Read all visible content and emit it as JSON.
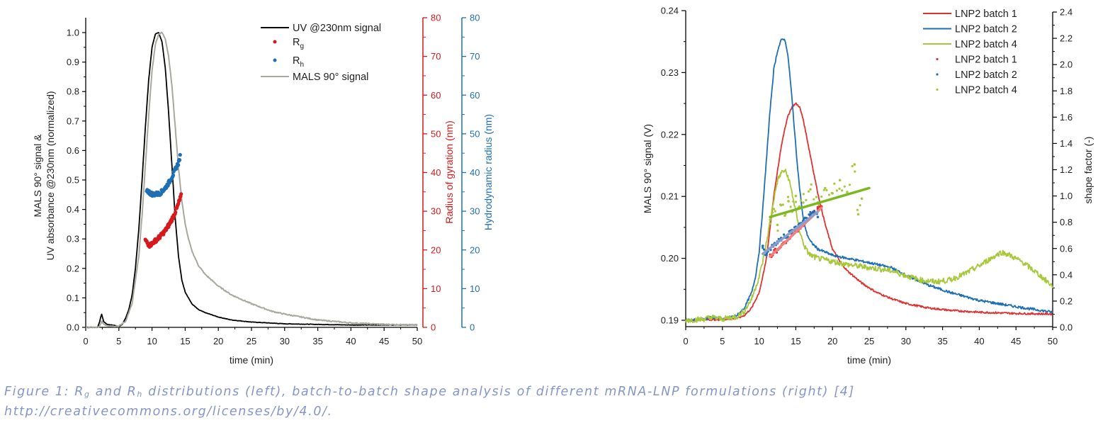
{
  "chart_data": [
    {
      "type": "line",
      "id": "left",
      "title": "",
      "xlabel": "time (min)",
      "ylabel_line1": "MALS 90° signal &",
      "ylabel_line2": "UV absorbance @230nm (normalized)",
      "xlim": [
        0,
        50
      ],
      "ylim": [
        0,
        1.05
      ],
      "xticks": [
        0,
        5,
        10,
        15,
        20,
        25,
        30,
        35,
        40,
        45,
        50
      ],
      "yticks": [
        0.0,
        0.1,
        0.2,
        0.3,
        0.4,
        0.5,
        0.6,
        0.7,
        0.8,
        0.9,
        1.0
      ],
      "ytick_labels": [
        "0.0",
        "0.1",
        "0.2",
        "0.3",
        "0.4",
        "0.5",
        "0.6",
        "0.7",
        "0.8",
        "0.9",
        "1.0"
      ],
      "grid": false,
      "legend": "top-right",
      "secondary_axes": [
        {
          "label": "Radius of gyration (nm)",
          "color": "#d7191c",
          "ylim": [
            0,
            80
          ],
          "ticks": [
            0,
            10,
            20,
            30,
            40,
            50,
            60,
            70,
            80
          ]
        },
        {
          "label": "Hydrodynamic radius (nm)",
          "color": "#1f6fb4",
          "ylim": [
            0,
            80
          ],
          "ticks": [
            0,
            10,
            20,
            30,
            40,
            50,
            60,
            70,
            80
          ]
        }
      ],
      "series": [
        {
          "name": "UV @230nm signal",
          "kind": "line",
          "color": "#000000",
          "axis": "primary",
          "x": [
            0,
            1.8,
            2.1,
            2.4,
            2.7,
            3.2,
            4,
            5,
            5.5,
            6,
            6.5,
            7,
            7.5,
            8,
            8.5,
            9,
            9.5,
            10,
            10.5,
            11,
            11.5,
            12,
            12.5,
            13,
            13.5,
            14,
            14.5,
            15,
            16,
            17,
            18,
            20,
            22,
            25,
            30,
            35,
            40,
            50
          ],
          "y": [
            0.0,
            0.0,
            0.02,
            0.045,
            0.02,
            0.01,
            0.008,
            0.003,
            0.01,
            0.03,
            0.06,
            0.11,
            0.2,
            0.33,
            0.5,
            0.68,
            0.84,
            0.95,
            0.995,
            1.0,
            0.97,
            0.88,
            0.73,
            0.55,
            0.37,
            0.24,
            0.16,
            0.12,
            0.08,
            0.06,
            0.05,
            0.035,
            0.025,
            0.018,
            0.012,
            0.01,
            0.008,
            0.008
          ]
        },
        {
          "name": "MALS 90° signal",
          "kind": "line",
          "color": "#a8a8a0",
          "axis": "primary",
          "x": [
            0,
            2,
            2.4,
            2.8,
            3.5,
            5,
            6,
            7,
            8,
            8.5,
            9,
            9.5,
            10,
            10.5,
            11,
            11.5,
            12,
            12.5,
            13,
            13.5,
            14,
            14.5,
            15,
            15.5,
            16,
            17,
            18,
            20,
            22,
            25,
            28,
            30,
            35,
            40,
            45,
            50
          ],
          "y": [
            0.0,
            0.0,
            0.02,
            0.01,
            0.005,
            0.004,
            0.02,
            0.08,
            0.24,
            0.38,
            0.55,
            0.72,
            0.87,
            0.96,
            0.995,
            1.0,
            0.98,
            0.92,
            0.82,
            0.68,
            0.54,
            0.43,
            0.35,
            0.3,
            0.26,
            0.21,
            0.18,
            0.14,
            0.11,
            0.08,
            0.055,
            0.045,
            0.025,
            0.015,
            0.01,
            0.008
          ]
        },
        {
          "name": "R_g",
          "legend_label": "R",
          "legend_sub": "g",
          "kind": "scatter",
          "color": "#d7191c",
          "axis": "secondary0",
          "x": [
            9.0,
            9.3,
            9.6,
            9.9,
            10.2,
            10.5,
            10.8,
            11.1,
            11.4,
            11.7,
            12.0,
            12.3,
            12.6,
            12.9,
            13.2,
            13.5,
            13.8,
            14.1,
            14.4
          ],
          "y": [
            22.5,
            21.8,
            21.2,
            21.5,
            22.0,
            22.4,
            22.8,
            23.3,
            23.8,
            24.4,
            25.0,
            25.8,
            26.6,
            27.6,
            28.6,
            29.8,
            31.0,
            32.6,
            34.0
          ]
        },
        {
          "name": "R_h",
          "legend_label": "R",
          "legend_sub": "h",
          "kind": "scatter",
          "color": "#1f6fb4",
          "axis": "secondary1",
          "x": [
            9.2,
            9.5,
            9.8,
            10.1,
            10.4,
            10.7,
            11.0,
            11.3,
            11.6,
            11.9,
            12.2,
            12.5,
            12.8,
            13.1,
            13.4,
            13.7,
            14.0,
            14.3
          ],
          "y": [
            35.5,
            35.0,
            34.6,
            34.4,
            34.4,
            34.5,
            34.5,
            34.8,
            35.3,
            35.8,
            36.5,
            37.3,
            38.2,
            39.2,
            40.3,
            41.5,
            42.5,
            44.5
          ]
        }
      ],
      "legend_entries": [
        "UV @230nm signal",
        "R",
        "R",
        "MALS 90° signal"
      ]
    },
    {
      "type": "line",
      "id": "right",
      "title": "",
      "xlabel": "time (min)",
      "ylabel": "MALS 90° signal (V)",
      "y2label": "shape factor (-)",
      "xlim": [
        0,
        50
      ],
      "ylim": [
        0.189,
        0.24
      ],
      "y2lim": [
        0,
        2.4
      ],
      "xticks": [
        0,
        5,
        10,
        15,
        20,
        25,
        30,
        35,
        40,
        45,
        50
      ],
      "yticks": [
        0.19,
        0.2,
        0.21,
        0.22,
        0.23,
        0.24
      ],
      "ytick_labels": [
        "0.19",
        "0.20",
        "0.21",
        "0.22",
        "0.23",
        "0.24"
      ],
      "y2ticks": [
        0.0,
        0.2,
        0.4,
        0.6,
        0.8,
        1.0,
        1.2,
        1.4,
        1.6,
        1.8,
        2.0,
        2.2,
        2.4
      ],
      "y2tick_labels": [
        "0.0",
        "0.2",
        "0.4",
        "0.6",
        "0.8",
        "1.0",
        "1.2",
        "1.4",
        "1.6",
        "1.8",
        "2.0",
        "2.2",
        "2.4"
      ],
      "grid": false,
      "legend": "top-right",
      "series": [
        {
          "name": "LNP2 batch 1",
          "kind": "line",
          "color": "#e03131",
          "axis": "primary",
          "x": [
            0,
            3,
            5,
            7,
            8,
            9,
            10,
            10.5,
            11,
            11.5,
            12,
            12.5,
            13,
            13.5,
            14,
            14.5,
            15,
            15.5,
            16,
            16.5,
            17,
            17.5,
            18,
            19,
            20,
            21,
            22,
            24,
            26,
            28,
            30,
            33,
            36,
            40,
            45,
            50
          ],
          "y": [
            0.19,
            0.1901,
            0.1901,
            0.1903,
            0.1908,
            0.192,
            0.1945,
            0.197,
            0.2,
            0.205,
            0.21,
            0.214,
            0.218,
            0.221,
            0.2232,
            0.2245,
            0.225,
            0.2245,
            0.2225,
            0.2195,
            0.2165,
            0.2135,
            0.2105,
            0.2055,
            0.2015,
            0.1995,
            0.198,
            0.196,
            0.1945,
            0.1935,
            0.1927,
            0.192,
            0.1916,
            0.1913,
            0.1911,
            0.191
          ]
        },
        {
          "name": "LNP2 batch 2",
          "kind": "line",
          "color": "#1f6fb4",
          "axis": "primary",
          "x": [
            0,
            2.5,
            3.5,
            5,
            7,
            8,
            9,
            9.5,
            10,
            10.5,
            11,
            11.5,
            12,
            12.5,
            13,
            13.3,
            13.6,
            14,
            14.5,
            15,
            15.5,
            16,
            16.5,
            17,
            18,
            19,
            20,
            22,
            25,
            28,
            30,
            33,
            36,
            40,
            45,
            50
          ],
          "y": [
            0.19,
            0.1902,
            0.1905,
            0.1902,
            0.1908,
            0.192,
            0.1945,
            0.197,
            0.201,
            0.208,
            0.216,
            0.224,
            0.2305,
            0.2335,
            0.2352,
            0.2355,
            0.235,
            0.232,
            0.2255,
            0.218,
            0.2115,
            0.2065,
            0.204,
            0.2027,
            0.2015,
            0.201,
            0.2005,
            0.2,
            0.1993,
            0.1985,
            0.1973,
            0.1957,
            0.1945,
            0.1932,
            0.1922,
            0.1913
          ]
        },
        {
          "name": "LNP2 batch 4",
          "kind": "line",
          "color": "#a8c83c",
          "axis": "primary",
          "x": [
            0,
            2.5,
            3.5,
            5,
            7,
            8,
            9,
            10,
            10.5,
            11,
            11.5,
            12,
            12.5,
            13,
            13.5,
            14,
            14.5,
            15,
            15.5,
            16,
            16.5,
            17,
            18,
            20,
            22,
            25,
            28,
            30,
            32,
            34,
            36,
            38,
            40,
            42,
            43,
            44,
            46,
            48,
            50
          ],
          "y": [
            0.19,
            0.1902,
            0.1905,
            0.1902,
            0.1906,
            0.1915,
            0.1935,
            0.197,
            0.1995,
            0.2025,
            0.206,
            0.2095,
            0.2125,
            0.2138,
            0.2142,
            0.213,
            0.2105,
            0.2075,
            0.2045,
            0.2025,
            0.2012,
            0.2005,
            0.2,
            0.1995,
            0.199,
            0.1985,
            0.198,
            0.1972,
            0.1965,
            0.1962,
            0.1965,
            0.1975,
            0.1988,
            0.2003,
            0.201,
            0.2006,
            0.1993,
            0.1975,
            0.1955
          ]
        },
        {
          "name": "LNP2 batch 1",
          "kind": "scatter",
          "color": "#e03131",
          "axis": "secondary",
          "x": [
            11.5,
            12,
            12.5,
            13,
            13.5,
            14,
            14.5,
            15,
            15.5,
            16,
            16.5,
            17,
            17.5,
            18,
            18.5
          ],
          "y": [
            0.54,
            0.57,
            0.59,
            0.62,
            0.65,
            0.67,
            0.71,
            0.73,
            0.76,
            0.79,
            0.81,
            0.84,
            0.87,
            0.9,
            0.92
          ],
          "fit": {
            "x": [
              11.5,
              18.5
            ],
            "y": [
              0.54,
              0.91
            ],
            "color": "#f08080"
          }
        },
        {
          "name": "LNP2 batch 2",
          "kind": "scatter",
          "color": "#1f6fb4",
          "axis": "secondary",
          "x": [
            10.5,
            11,
            11.5,
            12,
            12.5,
            13,
            13.5,
            14,
            14.5,
            15,
            15.5,
            16,
            16.5,
            17,
            17.5,
            18
          ],
          "y": [
            0.62,
            0.55,
            0.6,
            0.63,
            0.64,
            0.68,
            0.69,
            0.71,
            0.74,
            0.76,
            0.79,
            0.81,
            0.83,
            0.86,
            0.88,
            0.84
          ],
          "fit": {
            "x": [
              10.5,
              18
            ],
            "y": [
              0.56,
              0.88
            ],
            "color": "#8a9fd0"
          }
        },
        {
          "name": "LNP2 batch 4",
          "kind": "scatter",
          "color": "#a8c83c",
          "axis": "secondary",
          "x": [
            11.5,
            12,
            12.5,
            13,
            13.5,
            14,
            14.5,
            15,
            15.5,
            16,
            17,
            18,
            19,
            20,
            21,
            22,
            23,
            23.5,
            24
          ],
          "y": [
            0.82,
            0.9,
            0.78,
            0.93,
            0.85,
            0.96,
            0.88,
            1.0,
            0.92,
            0.95,
            1.05,
            0.95,
            1.06,
            1.02,
            1.12,
            1.03,
            1.24,
            0.86,
            0.98
          ],
          "fit": {
            "x": [
              11.5,
              25
            ],
            "y": [
              0.84,
              1.06
            ],
            "color": "#7ab820"
          }
        }
      ]
    }
  ],
  "caption": {
    "line1_a": "Figure 1: R",
    "line1_sub_g": "g",
    "line1_b": " and R",
    "line1_sub_h": "h",
    "line1_c": " distributions (left), batch-to-batch shape analysis of different mRNA-LNP formulations (right) [4]",
    "line2": "http://creativecommons.org/licenses/by/4.0/."
  }
}
